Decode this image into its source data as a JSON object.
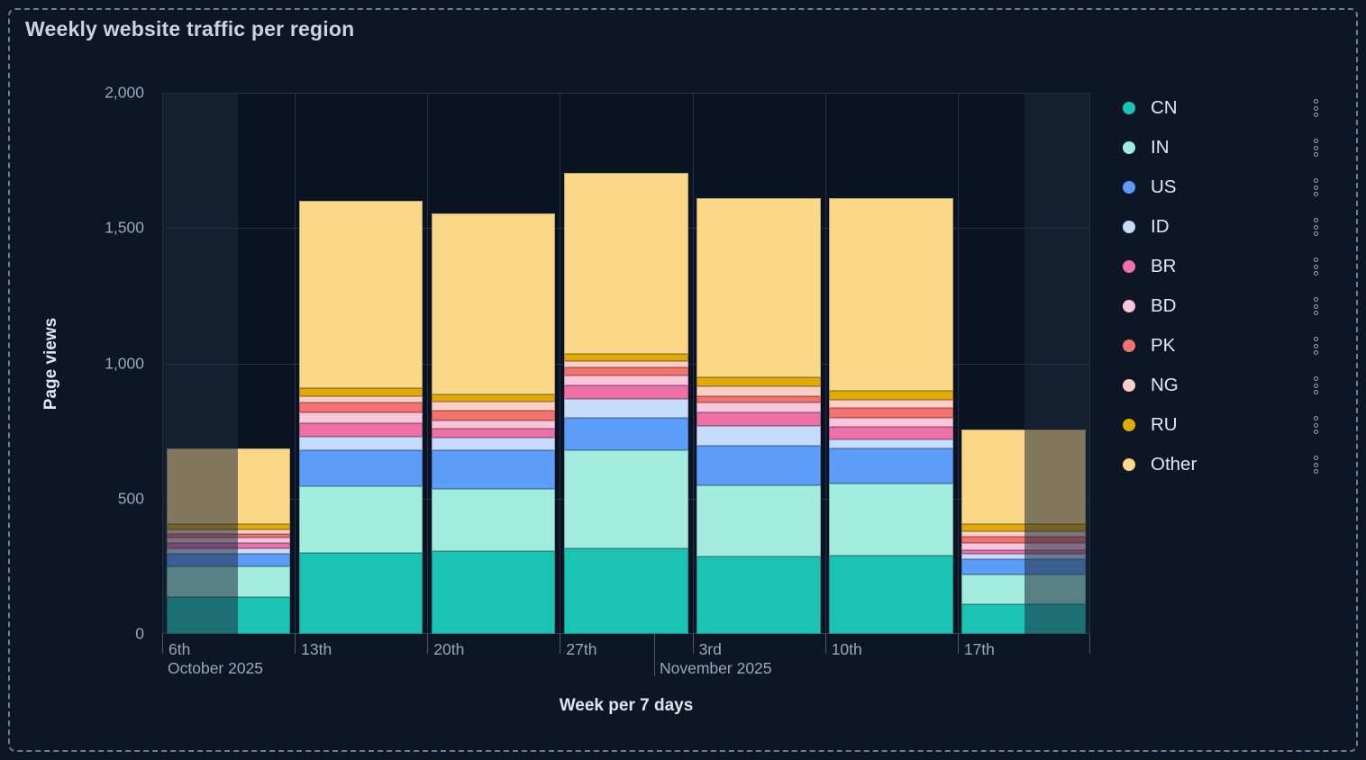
{
  "chart_data": {
    "type": "bar",
    "stacked": true,
    "title": "Weekly website traffic per region",
    "xlabel": "Week per 7 days",
    "ylabel": "Page views",
    "ylim": [
      0,
      2000
    ],
    "grid": true,
    "legend_position": "right",
    "yticks": [
      {
        "value": 0,
        "label": "0"
      },
      {
        "value": 500,
        "label": "500"
      },
      {
        "value": 1000,
        "label": "1,000"
      },
      {
        "value": 1500,
        "label": "1,500"
      },
      {
        "value": 2000,
        "label": "2,000"
      }
    ],
    "categories": [
      "6th",
      "13th",
      "20th",
      "27th",
      "3rd",
      "10th",
      "17th"
    ],
    "month_labels": [
      {
        "text": "October 2025",
        "anchor_category": "6th"
      },
      {
        "text": "November 2025",
        "anchor_category": "3rd"
      }
    ],
    "series": [
      {
        "name": "CN",
        "color": "#1bc3b3",
        "values": [
          135,
          300,
          305,
          315,
          285,
          290,
          110
        ]
      },
      {
        "name": "IN",
        "color": "#a3ecdd",
        "values": [
          115,
          245,
          230,
          365,
          265,
          265,
          110
        ]
      },
      {
        "name": "US",
        "color": "#5b9df8",
        "values": [
          45,
          135,
          145,
          120,
          145,
          130,
          55
        ]
      },
      {
        "name": "ID",
        "color": "#c7dcfb",
        "values": [
          20,
          50,
          45,
          70,
          75,
          35,
          20
        ]
      },
      {
        "name": "BR",
        "color": "#ee70a6",
        "values": [
          20,
          50,
          35,
          50,
          50,
          45,
          15
        ]
      },
      {
        "name": "BD",
        "color": "#f9c5db",
        "values": [
          20,
          40,
          30,
          35,
          35,
          35,
          25
        ]
      },
      {
        "name": "PK",
        "color": "#f4726b",
        "values": [
          15,
          35,
          35,
          30,
          25,
          35,
          25
        ]
      },
      {
        "name": "NG",
        "color": "#fdcfc4",
        "values": [
          15,
          25,
          35,
          25,
          35,
          30,
          20
        ]
      },
      {
        "name": "RU",
        "color": "#e2aa05",
        "values": [
          20,
          30,
          25,
          25,
          35,
          35,
          25
        ]
      },
      {
        "name": "Other",
        "color": "#fbd788",
        "values": [
          280,
          690,
          670,
          670,
          660,
          710,
          350
        ]
      }
    ],
    "dimmed_partial_weeks": [
      {
        "category": "6th",
        "side": "left"
      },
      {
        "category": "17th",
        "side": "right"
      }
    ]
  },
  "legend": {
    "menu_icon": "kebab-menu-icon"
  },
  "colors": {
    "background": "#0d1625",
    "plot_background": "#0a1321",
    "grid": "#26314b",
    "border_dashed": "#6b7d99",
    "title_text": "#c9d3e1",
    "tick_text": "#9aa7bd",
    "axis_title_text": "#dfe6f0",
    "legend_text": "#e2e8f1",
    "dim_overlay": "rgba(30,41,61,0.55)"
  }
}
